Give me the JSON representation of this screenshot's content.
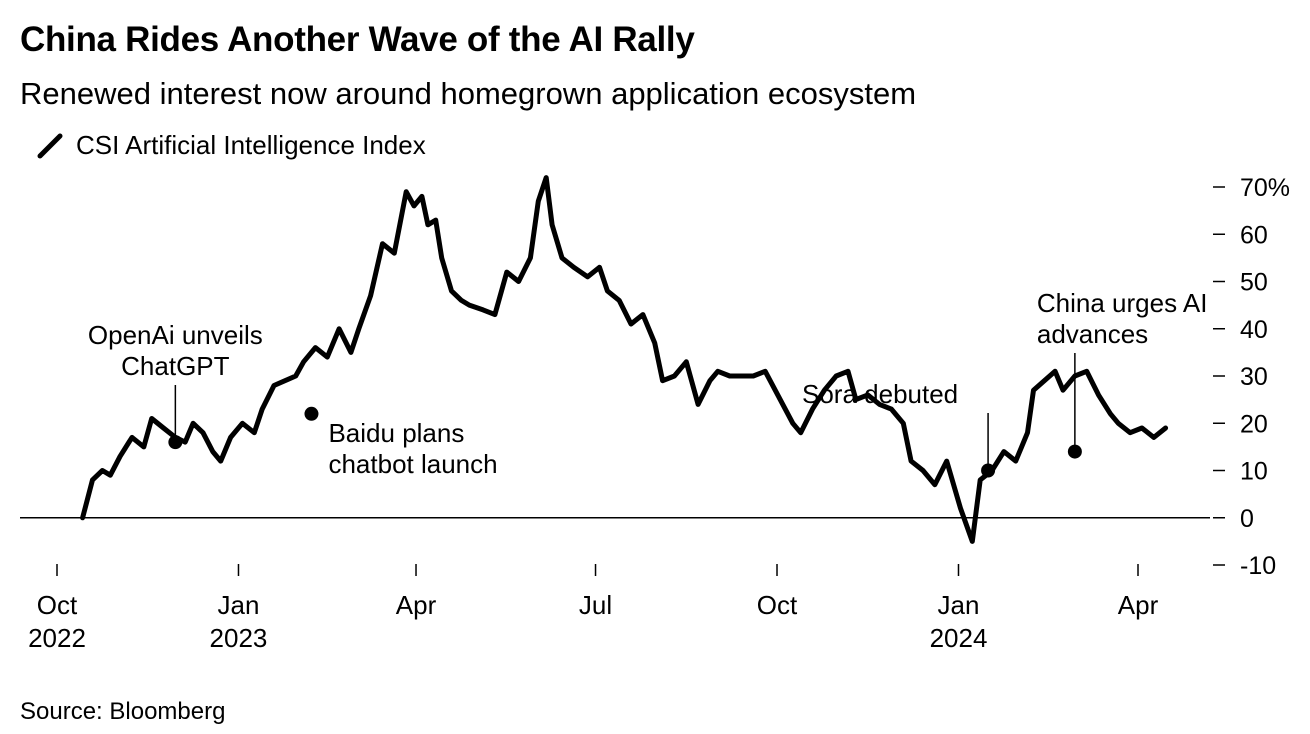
{
  "title": "China Rides Another Wave of the AI Rally",
  "subtitle": "Renewed interest now around homegrown application ecosystem",
  "source": "Source: Bloomberg",
  "colors": {
    "line": "#000000",
    "background": "#ffffff"
  },
  "chart_data": {
    "type": "line",
    "series": [
      {
        "name": "CSI Artificial Intelligence Index",
        "x": [
          "2022-10-14",
          "2022-10-19",
          "2022-10-24",
          "2022-10-28",
          "2022-11-02",
          "2022-11-08",
          "2022-11-14",
          "2022-11-18",
          "2022-11-24",
          "2022-11-30",
          "2022-12-05",
          "2022-12-09",
          "2022-12-14",
          "2022-12-19",
          "2022-12-23",
          "2022-12-28",
          "2023-01-03",
          "2023-01-09",
          "2023-01-13",
          "2023-01-19",
          "2023-01-30",
          "2023-02-03",
          "2023-02-09",
          "2023-02-15",
          "2023-02-21",
          "2023-02-27",
          "2023-03-03",
          "2023-03-09",
          "2023-03-15",
          "2023-03-21",
          "2023-03-27",
          "2023-03-31",
          "2023-04-04",
          "2023-04-07",
          "2023-04-11",
          "2023-04-14",
          "2023-04-19",
          "2023-04-24",
          "2023-04-28",
          "2023-05-05",
          "2023-05-11",
          "2023-05-17",
          "2023-05-23",
          "2023-05-29",
          "2023-06-02",
          "2023-06-06",
          "2023-06-09",
          "2023-06-14",
          "2023-06-20",
          "2023-06-27",
          "2023-07-03",
          "2023-07-07",
          "2023-07-13",
          "2023-07-19",
          "2023-07-25",
          "2023-07-31",
          "2023-08-04",
          "2023-08-10",
          "2023-08-16",
          "2023-08-22",
          "2023-08-28",
          "2023-09-01",
          "2023-09-07",
          "2023-09-13",
          "2023-09-19",
          "2023-09-25",
          "2023-10-09",
          "2023-10-13",
          "2023-10-19",
          "2023-10-25",
          "2023-10-31",
          "2023-11-06",
          "2023-11-10",
          "2023-11-16",
          "2023-11-22",
          "2023-11-28",
          "2023-12-04",
          "2023-12-08",
          "2023-12-14",
          "2023-12-20",
          "2023-12-26",
          "2024-01-02",
          "2024-01-08",
          "2024-01-12",
          "2024-01-18",
          "2024-01-24",
          "2024-01-30",
          "2024-02-02",
          "2024-02-05",
          "2024-02-08",
          "2024-02-19",
          "2024-02-23",
          "2024-02-29",
          "2024-03-06",
          "2024-03-12",
          "2024-03-18",
          "2024-03-22",
          "2024-03-28",
          "2024-04-03",
          "2024-04-09",
          "2024-04-15"
        ],
        "values": [
          0,
          8,
          10,
          9,
          13,
          17,
          15,
          21,
          19,
          17,
          16,
          20,
          18,
          14,
          12,
          17,
          20,
          18,
          23,
          28,
          30,
          33,
          36,
          34,
          40,
          35,
          40,
          47,
          58,
          56,
          69,
          66,
          68,
          62,
          63,
          55,
          48,
          46,
          45,
          44,
          43,
          52,
          50,
          55,
          67,
          72,
          62,
          55,
          53,
          51,
          53,
          48,
          46,
          41,
          43,
          37,
          29,
          30,
          33,
          24,
          29,
          31,
          30,
          30,
          30,
          31,
          20,
          18,
          23,
          27,
          30,
          31,
          25,
          26,
          24,
          23,
          20,
          12,
          10,
          7,
          12,
          2,
          -5,
          8,
          10,
          14,
          12,
          15,
          18,
          27,
          31,
          27,
          30,
          31,
          26,
          22,
          20,
          18,
          19,
          17,
          19
        ]
      }
    ],
    "xlabel": "",
    "ylabel": "",
    "ylim": [
      -10,
      70
    ],
    "yticks": [
      -10,
      0,
      10,
      20,
      30,
      40,
      50,
      60,
      70
    ],
    "ytick_labels": [
      "-10",
      "0",
      "10",
      "20",
      "30",
      "40",
      "50",
      "60",
      "70%"
    ],
    "y_axis_position": "right",
    "xticks": [
      {
        "date": "2022-10-01",
        "label": "Oct",
        "year": "2022"
      },
      {
        "date": "2023-01-01",
        "label": "Jan",
        "year": "2023"
      },
      {
        "date": "2023-04-01",
        "label": "Apr",
        "year": ""
      },
      {
        "date": "2023-07-01",
        "label": "Jul",
        "year": ""
      },
      {
        "date": "2023-10-01",
        "label": "Oct",
        "year": ""
      },
      {
        "date": "2024-01-01",
        "label": "Jan",
        "year": "2024"
      },
      {
        "date": "2024-04-01",
        "label": "Apr",
        "year": ""
      }
    ],
    "xlim": [
      "2022-10-01",
      "2024-04-15"
    ],
    "zero_line": true,
    "grid": false,
    "legend": "top-left",
    "annotations": [
      {
        "lines": [
          "OpenAi unveils",
          "ChatGPT"
        ],
        "date": "2022-11-30",
        "value": 16,
        "marker": true,
        "label_side": "above"
      },
      {
        "lines": [
          "Baidu plans",
          "chatbot launch"
        ],
        "date": "2023-02-07",
        "value": 22,
        "marker": true,
        "label_side": "below-right"
      },
      {
        "lines": [
          "Sora debuted"
        ],
        "date": "2024-01-16",
        "value": 10,
        "marker": true,
        "label_side": "above"
      },
      {
        "lines": [
          "China urges AI",
          "advances"
        ],
        "date": "2024-02-29",
        "value": 14,
        "marker": true,
        "label_side": "above"
      }
    ]
  }
}
